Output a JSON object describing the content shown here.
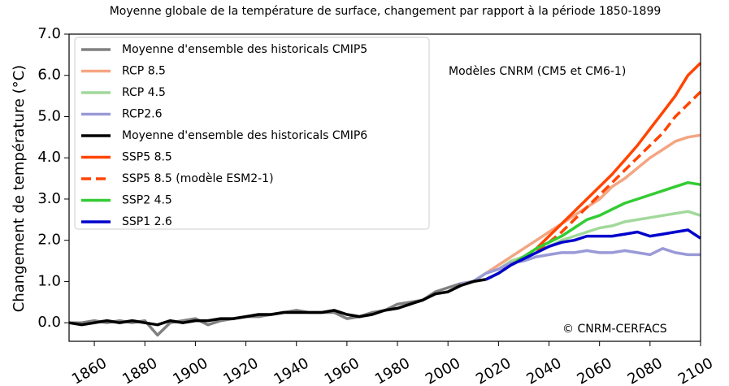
{
  "chart_data": {
    "type": "line",
    "title": "Moyenne globale de la température de surface, changement par rapport à la période 1850-1899",
    "y_label": "Changement de température (°C)",
    "annotations": [
      "Modèles CNRM (CM5 et CM6-1)",
      "© CNRM-CERFACS"
    ],
    "xlim": [
      1850,
      2100
    ],
    "ylim": [
      -0.45,
      7.0
    ],
    "xticks": [
      1860,
      1880,
      1900,
      1920,
      1940,
      1960,
      1980,
      2000,
      2020,
      2040,
      2060,
      2080,
      2100
    ],
    "yticks": [
      {
        "value": 0,
        "label": "0.0"
      },
      {
        "value": 1,
        "label": "1.0"
      },
      {
        "value": 2,
        "label": "2.0"
      },
      {
        "value": 3,
        "label": "3.0"
      },
      {
        "value": 4,
        "label": "4.0"
      },
      {
        "value": 5,
        "label": "5.0"
      },
      {
        "value": 6,
        "label": "6.0"
      },
      {
        "value": 7,
        "label": "7.0"
      }
    ],
    "legend": "upper left",
    "series": [
      {
        "name": "Moyenne d'ensemble des historicals CMIP5",
        "color": "#808080",
        "x": [
          1850,
          1855,
          1860,
          1865,
          1870,
          1875,
          1880,
          1885,
          1890,
          1895,
          1900,
          1905,
          1910,
          1915,
          1920,
          1925,
          1930,
          1935,
          1940,
          1945,
          1950,
          1955,
          1960,
          1965,
          1970,
          1975,
          1980,
          1985,
          1990,
          1995,
          2000,
          2005
        ],
        "values": [
          0.0,
          0.0,
          0.05,
          0.0,
          0.05,
          0.0,
          0.05,
          -0.3,
          0.0,
          0.05,
          0.1,
          -0.05,
          0.05,
          0.1,
          0.15,
          0.15,
          0.2,
          0.25,
          0.3,
          0.25,
          0.25,
          0.25,
          0.1,
          0.15,
          0.25,
          0.3,
          0.45,
          0.5,
          0.55,
          0.75,
          0.85,
          0.95
        ]
      },
      {
        "name": "RCP 8.5",
        "color": "#f4a582",
        "x": [
          2005,
          2010,
          2015,
          2020,
          2025,
          2030,
          2035,
          2040,
          2045,
          2050,
          2055,
          2060,
          2065,
          2070,
          2075,
          2080,
          2085,
          2090,
          2095,
          2100
        ],
        "values": [
          0.95,
          1.0,
          1.2,
          1.4,
          1.6,
          1.8,
          2.0,
          2.2,
          2.4,
          2.6,
          2.8,
          3.0,
          3.3,
          3.5,
          3.75,
          4.0,
          4.2,
          4.4,
          4.5,
          4.55
        ]
      },
      {
        "name": "RCP 4.5",
        "color": "#a1d99b",
        "x": [
          2005,
          2010,
          2015,
          2020,
          2025,
          2030,
          2035,
          2040,
          2045,
          2050,
          2055,
          2060,
          2065,
          2070,
          2075,
          2080,
          2085,
          2090,
          2095,
          2100
        ],
        "values": [
          0.95,
          1.0,
          1.2,
          1.3,
          1.5,
          1.6,
          1.7,
          1.85,
          2.0,
          2.1,
          2.2,
          2.3,
          2.35,
          2.45,
          2.5,
          2.55,
          2.6,
          2.65,
          2.7,
          2.6
        ]
      },
      {
        "name": "RCP2.6",
        "color": "#9a9ad8",
        "x": [
          2005,
          2010,
          2015,
          2020,
          2025,
          2030,
          2035,
          2040,
          2045,
          2050,
          2055,
          2060,
          2065,
          2070,
          2075,
          2080,
          2085,
          2090,
          2095,
          2100
        ],
        "values": [
          0.95,
          1.0,
          1.2,
          1.3,
          1.45,
          1.5,
          1.6,
          1.65,
          1.7,
          1.7,
          1.75,
          1.7,
          1.7,
          1.75,
          1.7,
          1.65,
          1.8,
          1.7,
          1.65,
          1.65
        ]
      },
      {
        "name": "Moyenne d'ensemble des historicals CMIP6",
        "color": "#000000",
        "x": [
          1850,
          1855,
          1860,
          1865,
          1870,
          1875,
          1880,
          1885,
          1890,
          1895,
          1900,
          1905,
          1910,
          1915,
          1920,
          1925,
          1930,
          1935,
          1940,
          1945,
          1950,
          1955,
          1960,
          1965,
          1970,
          1975,
          1980,
          1985,
          1990,
          1995,
          2000,
          2005,
          2010,
          2015
        ],
        "values": [
          0.0,
          -0.05,
          0.0,
          0.05,
          0.0,
          0.05,
          0.0,
          -0.05,
          0.05,
          0.0,
          0.05,
          0.05,
          0.1,
          0.1,
          0.15,
          0.2,
          0.2,
          0.25,
          0.25,
          0.25,
          0.25,
          0.3,
          0.2,
          0.15,
          0.2,
          0.3,
          0.35,
          0.45,
          0.55,
          0.7,
          0.75,
          0.9,
          1.0,
          1.05
        ]
      },
      {
        "name": "SSP5 8.5",
        "color": "#ff4500",
        "x": [
          2015,
          2020,
          2025,
          2030,
          2035,
          2040,
          2045,
          2050,
          2055,
          2060,
          2065,
          2070,
          2075,
          2080,
          2085,
          2090,
          2095,
          2100
        ],
        "values": [
          1.05,
          1.2,
          1.4,
          1.6,
          1.8,
          2.1,
          2.4,
          2.7,
          3.0,
          3.3,
          3.6,
          3.95,
          4.3,
          4.7,
          5.1,
          5.5,
          6.0,
          6.3
        ]
      },
      {
        "name": "SSP5 8.5 (modèle ESM2-1)",
        "color": "#ff4500",
        "dashed": true,
        "x": [
          2015,
          2020,
          2025,
          2030,
          2035,
          2040,
          2045,
          2050,
          2055,
          2060,
          2065,
          2070,
          2075,
          2080,
          2085,
          2090,
          2095,
          2100
        ],
        "values": [
          1.05,
          1.2,
          1.4,
          1.6,
          1.75,
          1.95,
          2.2,
          2.5,
          2.8,
          3.1,
          3.4,
          3.7,
          4.0,
          4.3,
          4.6,
          5.0,
          5.3,
          5.6
        ]
      },
      {
        "name": "SSP2 4.5",
        "color": "#33cc33",
        "x": [
          2015,
          2020,
          2025,
          2030,
          2035,
          2040,
          2045,
          2050,
          2055,
          2060,
          2065,
          2070,
          2075,
          2080,
          2085,
          2090,
          2095,
          2100
        ],
        "values": [
          1.05,
          1.2,
          1.4,
          1.6,
          1.8,
          1.95,
          2.1,
          2.3,
          2.5,
          2.6,
          2.75,
          2.9,
          3.0,
          3.1,
          3.2,
          3.3,
          3.4,
          3.35
        ]
      },
      {
        "name": "SSP1 2.6",
        "color": "#0000cc",
        "x": [
          2015,
          2020,
          2025,
          2030,
          2035,
          2040,
          2045,
          2050,
          2055,
          2060,
          2065,
          2070,
          2075,
          2080,
          2085,
          2090,
          2095,
          2100
        ],
        "values": [
          1.05,
          1.2,
          1.4,
          1.55,
          1.7,
          1.85,
          1.95,
          2.0,
          2.1,
          2.1,
          2.1,
          2.15,
          2.2,
          2.1,
          2.15,
          2.2,
          2.25,
          2.05
        ]
      }
    ]
  }
}
